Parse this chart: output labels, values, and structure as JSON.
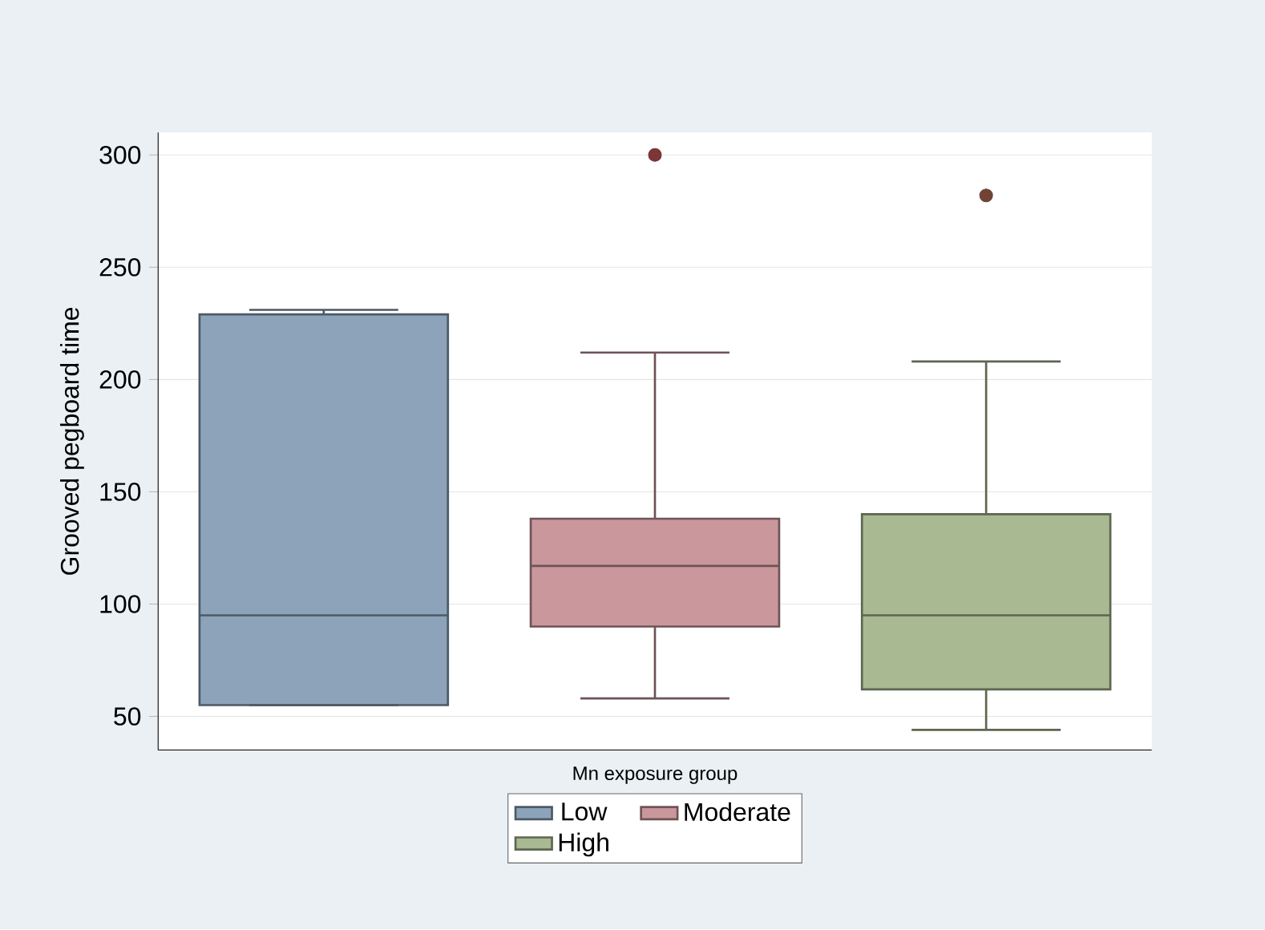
{
  "chart_data": {
    "type": "box",
    "xlabel": "Mn exposure group",
    "ylabel": "Grooved pegboard time",
    "categories": [
      null,
      null,
      null
    ],
    "ylim": [
      35,
      310
    ],
    "yticks": [
      50,
      100,
      150,
      200,
      250,
      300
    ],
    "grid": "y",
    "legend": "bottom",
    "series": [
      {
        "name": "Low",
        "color": "#8ca3b9",
        "boxes": [
          {
            "low": 55,
            "q1": 55,
            "median": 95,
            "q3": 229,
            "high": 231
          },
          null,
          null
        ]
      },
      {
        "name": "Moderate",
        "color": "#c9979c",
        "boxes": [
          null,
          {
            "low": 58,
            "q1": 90,
            "median": 117,
            "q3": 138,
            "high": 212,
            "outliers": [
              300
            ]
          },
          null
        ]
      },
      {
        "name": "High",
        "color": "#a9b992",
        "boxes": [
          null,
          null,
          {
            "low": 44,
            "q1": 62,
            "median": 95,
            "q3": 140,
            "high": 208,
            "outliers": [
              282
            ]
          }
        ]
      }
    ]
  }
}
